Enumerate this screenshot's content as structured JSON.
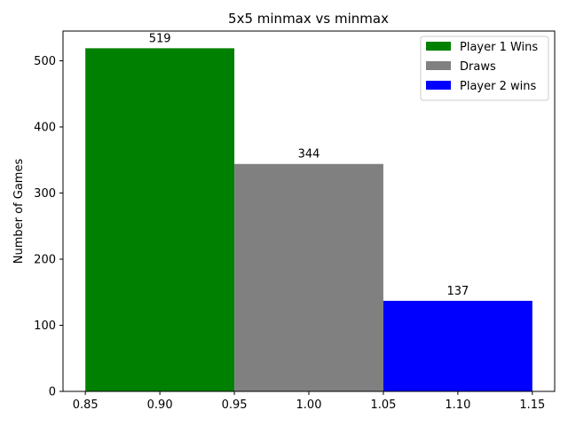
{
  "chart_data": {
    "type": "bar",
    "title": "5x5 minmax vs minmax",
    "xlabel": "",
    "ylabel": "Number of Games",
    "xlim": [
      0.835,
      1.165
    ],
    "ylim": [
      0,
      545
    ],
    "x_ticks": [
      "0.85",
      "0.90",
      "0.95",
      "1.00",
      "1.05",
      "1.10",
      "1.15"
    ],
    "y_ticks": [
      "0",
      "100",
      "200",
      "300",
      "400",
      "500"
    ],
    "grid": false,
    "legend_position": "top-right",
    "series": [
      {
        "name": "Player 1 Wins",
        "x_start": 0.85,
        "x_end": 0.95,
        "value": 519,
        "label": "519",
        "color": "#008000"
      },
      {
        "name": "Draws",
        "x_start": 0.95,
        "x_end": 1.05,
        "value": 344,
        "label": "344",
        "color": "#808080"
      },
      {
        "name": "Player 2 wins",
        "x_start": 1.05,
        "x_end": 1.15,
        "value": 137,
        "label": "137",
        "color": "#0000ff"
      }
    ]
  }
}
